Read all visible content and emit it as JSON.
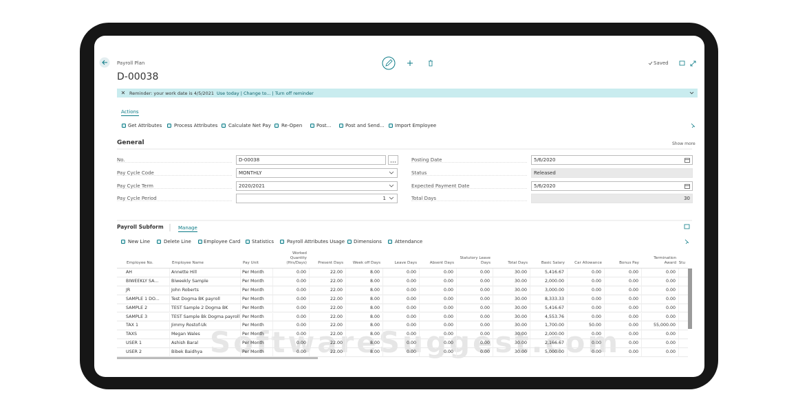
{
  "header": {
    "breadcrumb": "Payroll Plan",
    "title": "D-00038",
    "saved": "Saved"
  },
  "reminder": {
    "text": "Reminder: your work date is 4/5/2021",
    "links": "Use today | Change to... | Turn off reminder"
  },
  "actions": {
    "tab": "Actions",
    "items": [
      "Get Attributes",
      "Process Attributes",
      "Calculate Net Pay",
      "Re-Open",
      "Post...",
      "Post and Send...",
      "Import Employee"
    ]
  },
  "general": {
    "title": "General",
    "show_more": "Show more",
    "left": [
      {
        "label": "No.",
        "value": "D-00038"
      },
      {
        "label": "Pay Cycle Code",
        "value": "MONTHLY"
      },
      {
        "label": "Pay Cycle Term",
        "value": "2020/2021"
      },
      {
        "label": "Pay Cycle Period",
        "value": "1"
      }
    ],
    "right": [
      {
        "label": "Posting Date",
        "value": "5/6/2020"
      },
      {
        "label": "Status",
        "value": "Released"
      },
      {
        "label": "Expected Payment Date",
        "value": "5/6/2020"
      },
      {
        "label": "Total Days",
        "value": "30"
      }
    ]
  },
  "subform": {
    "title": "Payroll Subform",
    "tab": "Manage",
    "actions": [
      "New Line",
      "Delete Line",
      "Employee Card",
      "Statistics",
      "Payroll Attributes Usage",
      "Dimensions",
      "Attendance"
    ],
    "columns": [
      "Employee No.",
      "Employee Name",
      "Pay Unit",
      "Worked Quantity (Hrs/Days)",
      "Present Days",
      "Week off Days",
      "Leave Days",
      "Absent Days",
      "Statutory Leave Days",
      "Total Days",
      "Basic Salary",
      "Car Allowance",
      "Bonus Pay",
      "Termination Award",
      "Stu"
    ],
    "rows": [
      [
        "AH",
        "Annette Hill",
        "Per Month",
        "0.00",
        "22.00",
        "8.00",
        "0.00",
        "0.00",
        "0.00",
        "30.00",
        "5,416.67",
        "0.00",
        "0.00",
        "0.00"
      ],
      [
        "BIWEEKLY SA...",
        "Biweekly Sample",
        "Per Month",
        "0.00",
        "22.00",
        "8.00",
        "0.00",
        "0.00",
        "0.00",
        "30.00",
        "2,000.00",
        "0.00",
        "0.00",
        "0.00"
      ],
      [
        "JR",
        "John Roberts",
        "Per Month",
        "0.00",
        "22.00",
        "8.00",
        "0.00",
        "0.00",
        "0.00",
        "30.00",
        "3,000.00",
        "0.00",
        "0.00",
        "0.00"
      ],
      [
        "SAMPLE 1 DO...",
        "Test Dogma BK payroll",
        "Per Month",
        "0.00",
        "22.00",
        "8.00",
        "0.00",
        "0.00",
        "0.00",
        "30.00",
        "8,333.33",
        "0.00",
        "0.00",
        "0.00"
      ],
      [
        "SAMPLE 2",
        "TEST Sample 2 Dogma BK",
        "Per Month",
        "0.00",
        "22.00",
        "8.00",
        "0.00",
        "0.00",
        "0.00",
        "30.00",
        "5,416.67",
        "0.00",
        "0.00",
        "0.00"
      ],
      [
        "SAMPLE 3",
        "TEST Sample Bk Dogma payroll",
        "Per Month",
        "0.00",
        "22.00",
        "8.00",
        "0.00",
        "0.00",
        "0.00",
        "30.00",
        "4,553.76",
        "0.00",
        "0.00",
        "0.00"
      ],
      [
        "TAX 1",
        "Jimmy Rostof-Uk",
        "Per Month",
        "0.00",
        "22.00",
        "8.00",
        "0.00",
        "0.00",
        "0.00",
        "30.00",
        "1,700.00",
        "50.00",
        "0.00",
        "55,000.00"
      ],
      [
        "TAXS",
        "Megan Wales",
        "Per Month",
        "0.00",
        "22.00",
        "8.00",
        "0.00",
        "0.00",
        "0.00",
        "30.00",
        "2,000.00",
        "0.00",
        "0.00",
        "0.00"
      ],
      [
        "USER 1",
        "Ashish Baral",
        "Per Month",
        "0.00",
        "22.00",
        "8.00",
        "0.00",
        "0.00",
        "0.00",
        "30.00",
        "2,166.67",
        "0.00",
        "0.00",
        "0.00"
      ],
      [
        "USER 2",
        "Bibek Baidhya",
        "Per Month",
        "0.00",
        "22.00",
        "8.00",
        "0.00",
        "0.00",
        "0.00",
        "30.00",
        "5,000.00",
        "0.00",
        "0.00",
        "0.00"
      ]
    ]
  },
  "watermark": "SoftwareSuggest.com"
}
